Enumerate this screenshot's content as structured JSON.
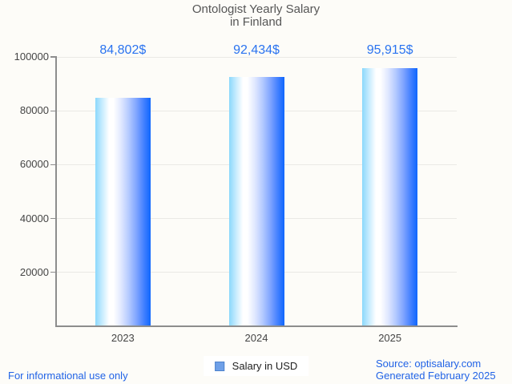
{
  "title": {
    "line1": "Ontologist Yearly Salary",
    "line2": "in Finland"
  },
  "chart_data": {
    "type": "bar",
    "title": "Ontologist Yearly Salary in Finland",
    "categories": [
      "2023",
      "2024",
      "2025"
    ],
    "series": [
      {
        "name": "Salary in USD",
        "values": [
          84802,
          92434,
          95915
        ]
      }
    ],
    "value_labels": [
      "84,802$",
      "92,434$",
      "95,915$"
    ],
    "xlabel": "",
    "ylabel": "",
    "ylim": [
      0,
      100000
    ],
    "yticks": [
      20000,
      40000,
      60000,
      80000,
      100000
    ],
    "ytick_labels": [
      "20000",
      "40000",
      "60000",
      "80000",
      "100000"
    ],
    "grid": true,
    "legend_position": "bottom",
    "bar_style": "horizontal blue gloss gradient"
  },
  "legend": {
    "label": "Salary in USD",
    "marker_color": "#6fa0e8"
  },
  "footer": {
    "left": "For informational use only",
    "source": "Source: optisalary.com",
    "generated": "Generated February 2025"
  },
  "colors": {
    "background": "#fdfcf8",
    "title_text": "#565656",
    "axis_line": "#8d8d8d",
    "gridline": "#eae9e5",
    "tick_text": "#454545",
    "value_label_blue": "#2a73f0",
    "footer_blue": "#2163e6",
    "bar_gradient_left": "#8bd8fc",
    "bar_gradient_mid": "#ffffff",
    "bar_gradient_right": "#0f66fe"
  }
}
